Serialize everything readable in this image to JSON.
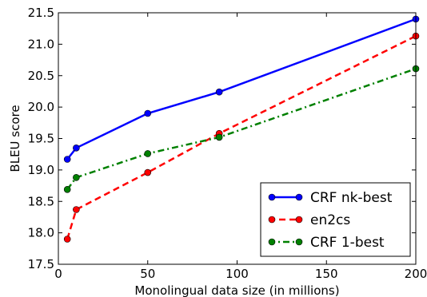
{
  "chart_data": {
    "type": "line",
    "title": "",
    "xlabel": "Monolingual data size (in millions)",
    "ylabel": "BLEU score",
    "xlim": [
      0,
      200
    ],
    "ylim": [
      17.5,
      21.5
    ],
    "xticks": [
      0,
      50,
      100,
      150,
      200
    ],
    "yticks": [
      17.5,
      18.0,
      18.5,
      19.0,
      19.5,
      20.0,
      20.5,
      21.0,
      21.5
    ],
    "xtick_labels": [
      "0",
      "50",
      "100",
      "150",
      "200"
    ],
    "ytick_labels": [
      "17.5",
      "18.0",
      "18.5",
      "19.0",
      "19.5",
      "20.0",
      "20.5",
      "21.0",
      "21.5"
    ],
    "grid": false,
    "legend_position": "lower-right",
    "series": [
      {
        "name": "CRF nk-best",
        "color": "#0000ff",
        "line_style": "solid",
        "marker": "circle",
        "x": [
          5,
          10,
          50,
          90,
          200
        ],
        "y": [
          19.17,
          19.35,
          19.9,
          20.24,
          21.4
        ]
      },
      {
        "name": "en2cs",
        "color": "#ff0000",
        "line_style": "dashed",
        "marker": "circle",
        "x": [
          5,
          10,
          50,
          90,
          200
        ],
        "y": [
          17.9,
          18.37,
          18.96,
          19.58,
          21.13
        ]
      },
      {
        "name": "CRF 1-best",
        "color": "#008000",
        "line_style": "dash-dot",
        "marker": "circle",
        "x": [
          5,
          10,
          50,
          90,
          200
        ],
        "y": [
          18.69,
          18.88,
          19.26,
          19.52,
          20.61
        ]
      }
    ]
  }
}
